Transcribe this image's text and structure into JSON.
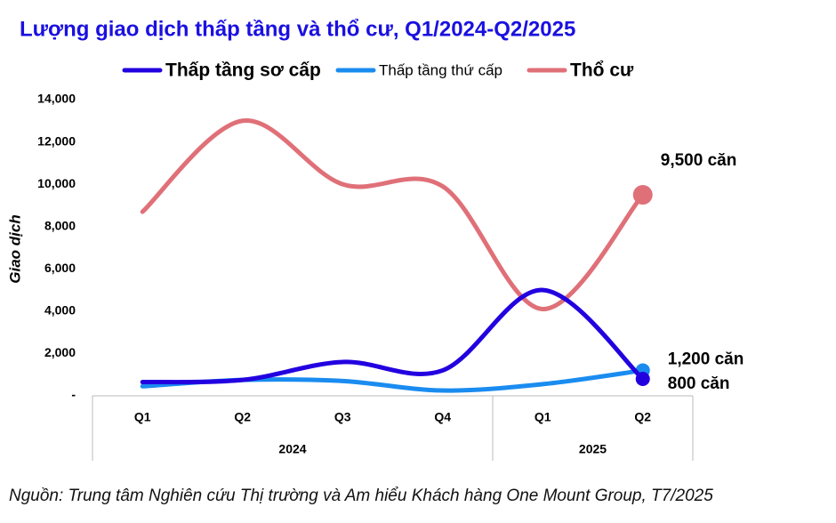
{
  "chart_data": {
    "type": "line",
    "title": "Lượng giao dịch thấp tầng và thổ cư, Q1/2024-Q2/2025",
    "y_label": "Giao dịch",
    "source": "Nguồn: Trung tâm Nghiên cứu Thị trường và Am hiểu Khách hàng One Mount Group, T7/2025",
    "categories": [
      "Q1",
      "Q2",
      "Q3",
      "Q4",
      "Q1",
      "Q2"
    ],
    "groups": [
      {
        "label": "2024",
        "span": 4
      },
      {
        "label": "2025",
        "span": 2
      }
    ],
    "series": [
      {
        "name": "Thấp tầng sơ cấp",
        "color": "#2200e0",
        "values": [
          650,
          750,
          1600,
          1200,
          5000,
          800
        ],
        "end_label": "800 căn"
      },
      {
        "name": "Thấp tầng thứ cấp",
        "color": "#1a8cf0",
        "values": [
          450,
          750,
          700,
          250,
          550,
          1200
        ],
        "end_label": "1,200 căn"
      },
      {
        "name": "Thổ cư",
        "color": "#e07078",
        "values": [
          8700,
          13000,
          10000,
          9900,
          4100,
          9500
        ],
        "end_label": "9,500 căn"
      }
    ],
    "ylim": [
      0,
      14000
    ],
    "yticks": [
      {
        "value": 0,
        "label": "-"
      },
      {
        "value": 2000,
        "label": "2,000"
      },
      {
        "value": 4000,
        "label": "4,000"
      },
      {
        "value": 6000,
        "label": "6,000"
      },
      {
        "value": 8000,
        "label": "8,000"
      },
      {
        "value": 10000,
        "label": "10,000"
      },
      {
        "value": 12000,
        "label": "12,000"
      },
      {
        "value": 14000,
        "label": "14,000"
      }
    ],
    "grid": false
  }
}
